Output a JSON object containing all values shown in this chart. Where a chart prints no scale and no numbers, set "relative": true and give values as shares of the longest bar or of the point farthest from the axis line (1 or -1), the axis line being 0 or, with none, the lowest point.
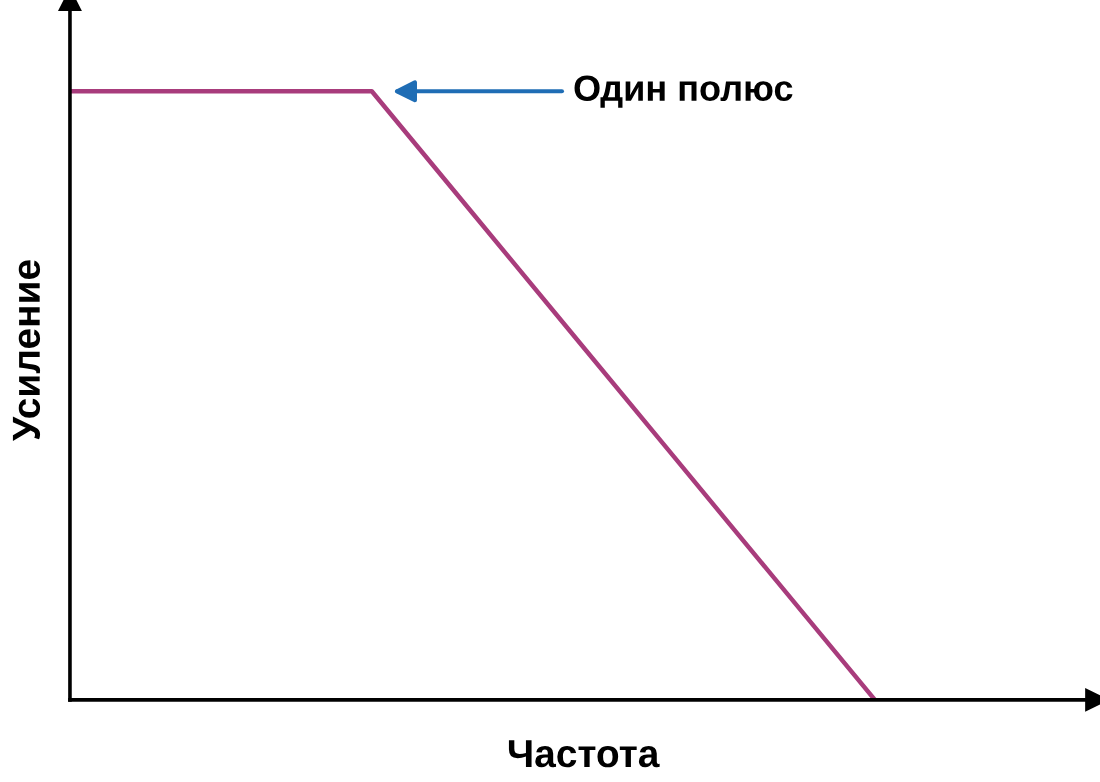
{
  "chart_data": {
    "type": "line",
    "relative": true,
    "xlabel": "Частота",
    "ylabel": "Усиление",
    "categories": [
      null,
      null,
      null,
      null,
      null,
      null,
      null,
      null,
      null
    ],
    "series": [
      {
        "color": "#a83c7c",
        "values": [
          1,
          1,
          1,
          1,
          0.8,
          0.6,
          0.4,
          0.2,
          0
        ]
      }
    ],
    "annotations": [
      "Один полюс"
    ],
    "legend": false,
    "tick_labels": false,
    "marker": "none",
    "line_style": "solid"
  }
}
